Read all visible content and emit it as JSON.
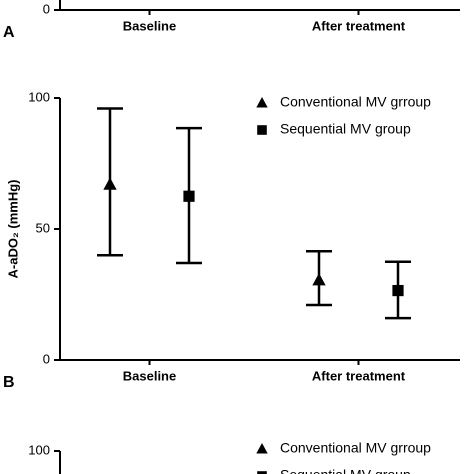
{
  "chart_data": [
    {
      "type": "errorbar",
      "panel": "A",
      "categories": [
        "Baseline",
        "After treatment"
      ],
      "ylim": [
        0,
        100
      ],
      "yticks": [
        0
      ]
    },
    {
      "type": "errorbar",
      "panel": "B",
      "ylabel": "A-aDO₂ (mmHg)",
      "categories": [
        "Baseline",
        "After treatment"
      ],
      "ylim": [
        0,
        100
      ],
      "yticks": [
        0,
        50,
        100
      ],
      "series": [
        {
          "name": "Conventional MV grroup",
          "color": "#000000",
          "marker": "triangle",
          "values": [
            67,
            30.5
          ],
          "upper": [
            96,
            41.5
          ],
          "lower": [
            40,
            21
          ]
        },
        {
          "name": "Sequential MV group",
          "color": "#000000",
          "marker": "square",
          "values": [
            62.5,
            26.5
          ],
          "upper": [
            88.5,
            37.5
          ],
          "lower": [
            37,
            16
          ]
        }
      ]
    },
    {
      "type": "errorbar",
      "ylim": [
        0,
        100
      ],
      "yticks": [
        100
      ],
      "series": [
        {
          "name": "Conventional MV grroup",
          "color": "#000000",
          "marker": "triangle"
        },
        {
          "name": "Sequential MV group",
          "color": "#000000",
          "marker": "square"
        }
      ]
    }
  ]
}
